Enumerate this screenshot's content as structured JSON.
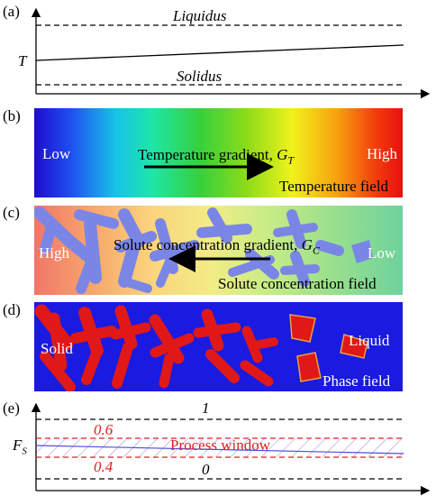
{
  "panels": {
    "a": {
      "label": "(a)",
      "liquidus": "Liquidus",
      "solidus": "Solidus",
      "y_axis": "T"
    },
    "b": {
      "label": "(b)",
      "low": "Low",
      "high": "High",
      "gradient_text": "Temperature gradient, ",
      "gradient_symbol": "G",
      "gradient_sub": "T",
      "field": "Temperature field"
    },
    "c": {
      "label": "(c)",
      "high": "High",
      "low": "Low",
      "gradient_text": "Solute concentration gradient, ",
      "gradient_symbol": "G",
      "gradient_sub": "C",
      "field": "Solute concentration field"
    },
    "d": {
      "label": "(d)",
      "liquid": "Liquid",
      "solid": "Solid",
      "field": "Phase field"
    },
    "e": {
      "label": "(e)",
      "top": "1",
      "upper": "0.6",
      "lower": "0.4",
      "bottom": "0",
      "window": "Process window",
      "y_symbol": "F",
      "y_sub": "S"
    }
  },
  "colors": {
    "window_line": "#e02020",
    "hatch": "#7070d0",
    "blob_c": "#7a86e6",
    "blob_d": "#e01818",
    "liquid": "#1a1ae0"
  }
}
